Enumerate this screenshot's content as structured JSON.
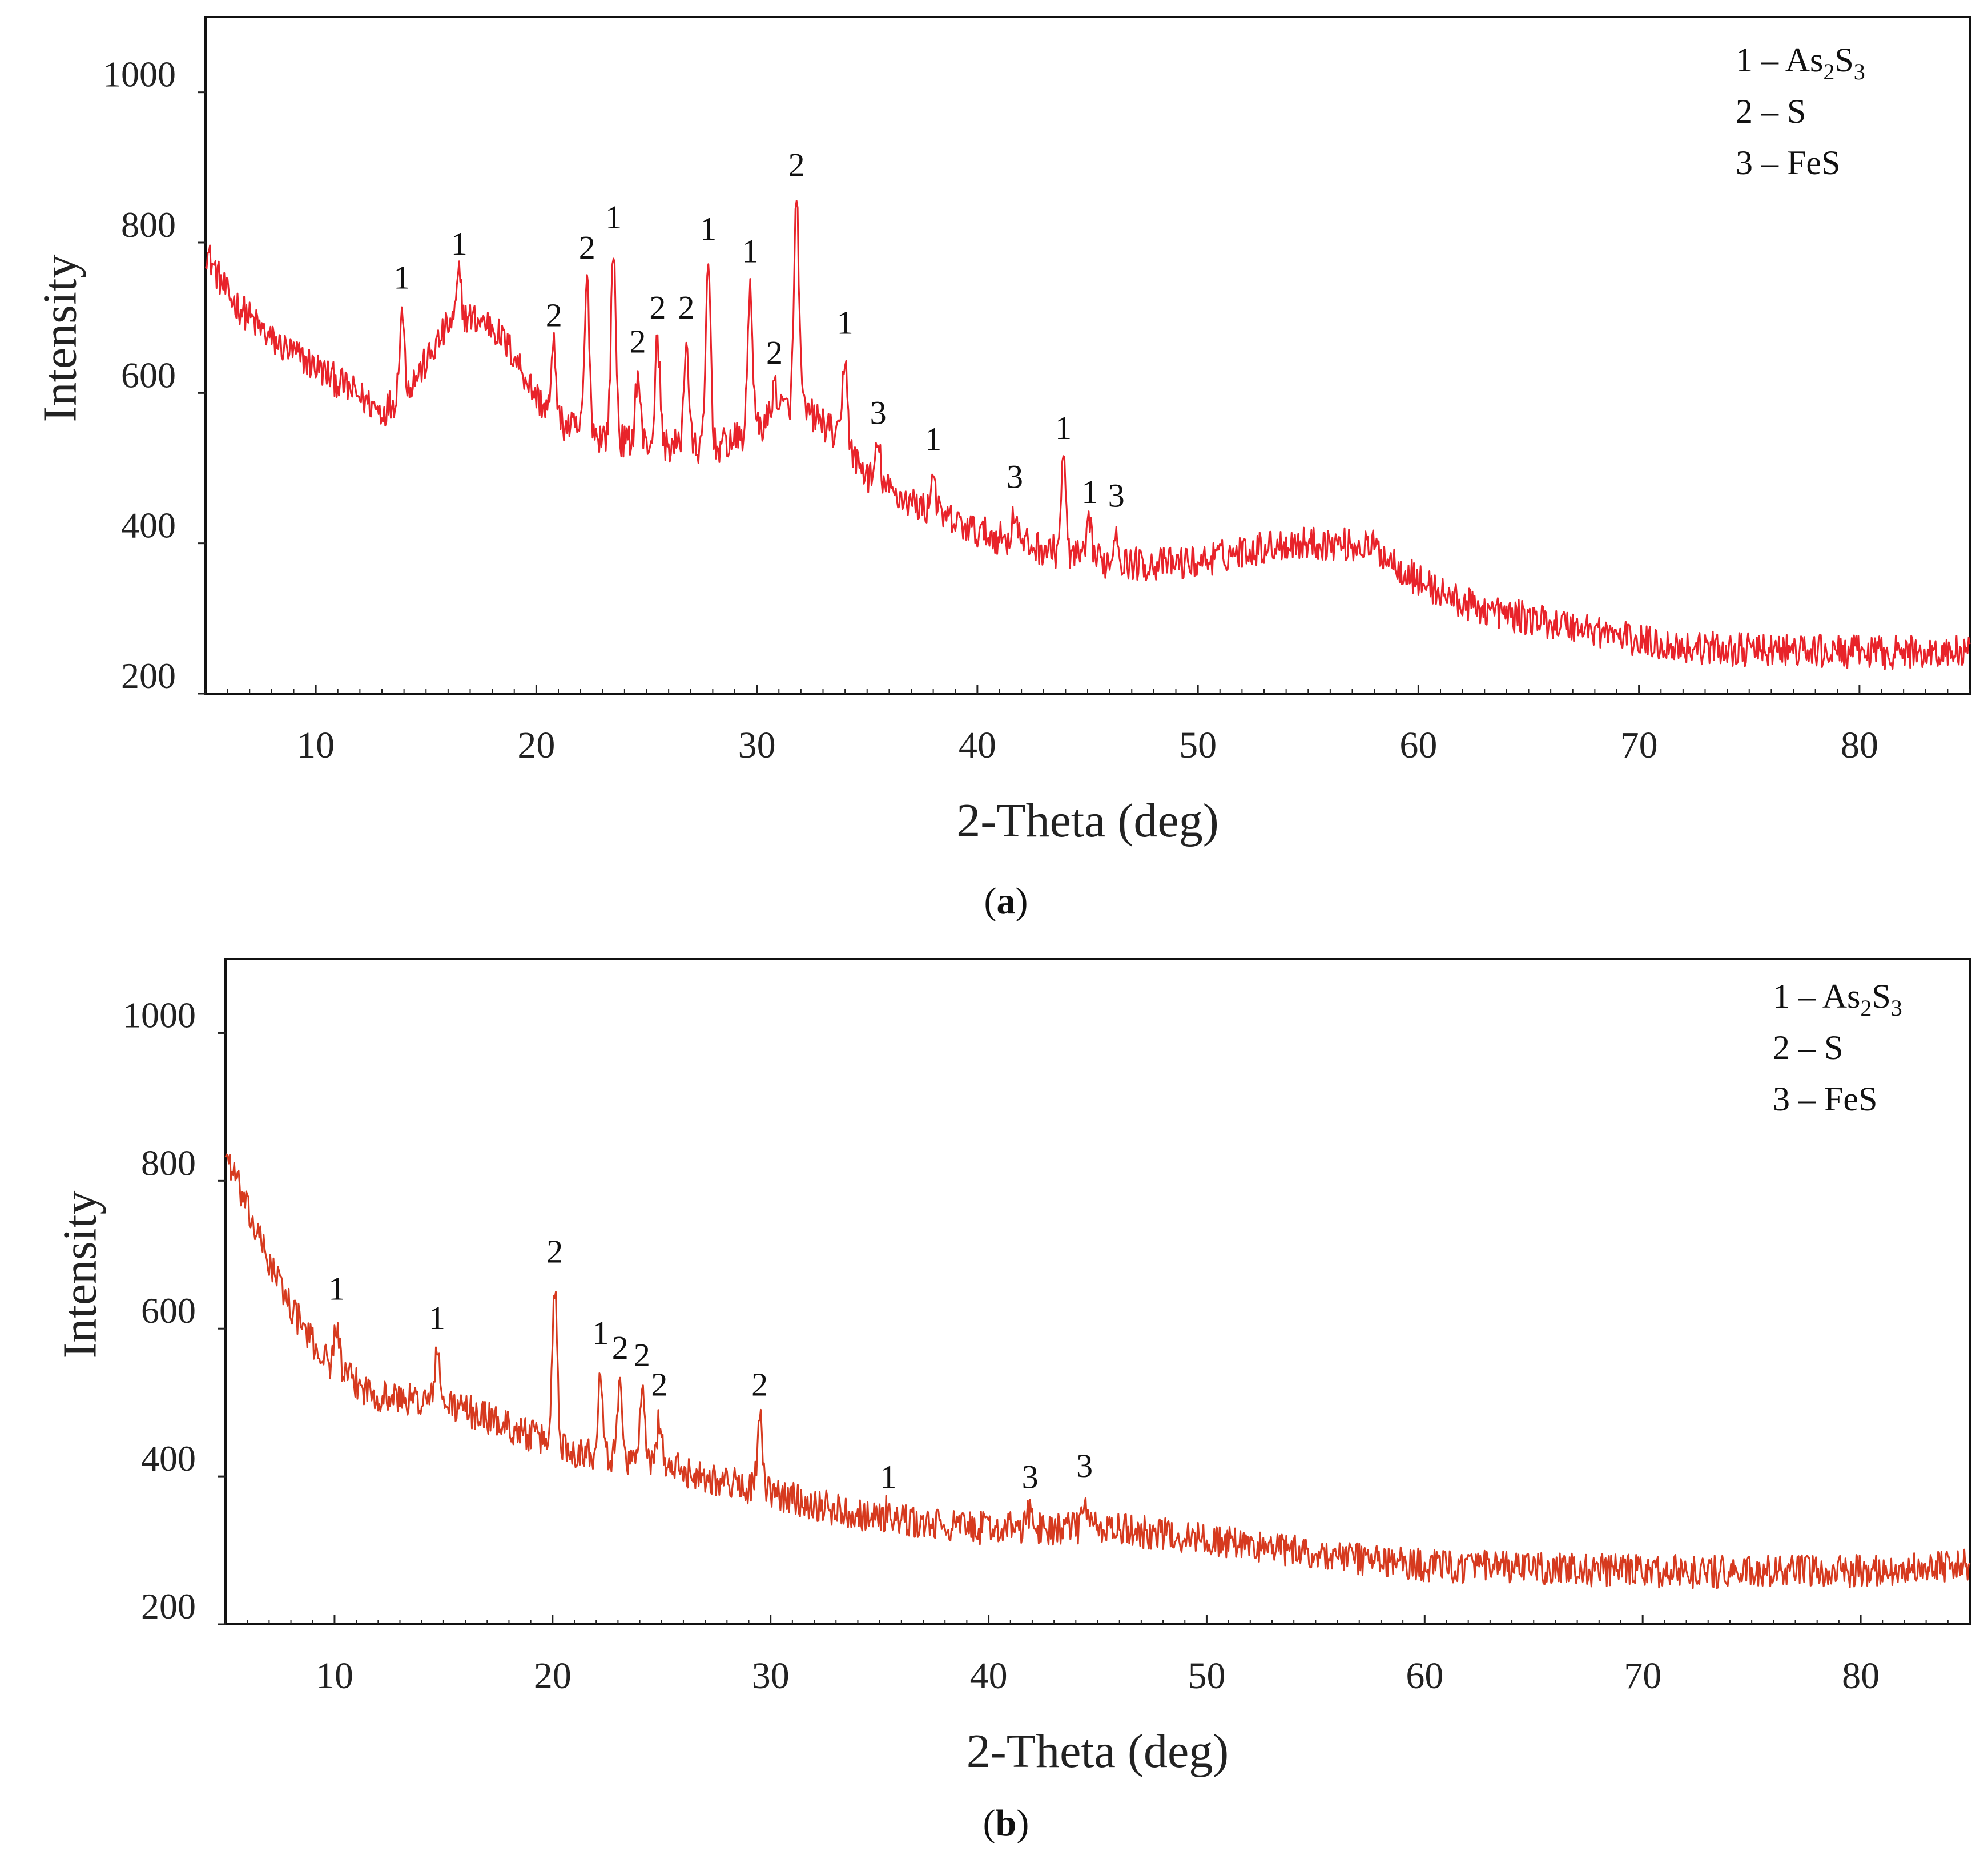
{
  "chart_data": [
    {
      "panel_label": "a",
      "type": "line",
      "xlabel": "2-Theta (deg)",
      "ylabel": "Intensity",
      "xlim": [
        5,
        85
      ],
      "ylim": [
        200,
        1100
      ],
      "xticks": [
        10,
        20,
        30,
        40,
        50,
        60,
        70,
        80
      ],
      "yticks": [
        200,
        400,
        600,
        800,
        1000
      ],
      "line_color": "#e8232a",
      "legend_position": "top-right",
      "legend": [
        {
          "key": "1",
          "dash": "–",
          "formula": "As",
          "sub1": "2",
          "mid": "S",
          "sub2": "3"
        },
        {
          "key": "2",
          "dash": "–",
          "formula": "S",
          "sub1": "",
          "mid": "",
          "sub2": ""
        },
        {
          "key": "3",
          "dash": "–",
          "formula": "FeS",
          "sub1": "",
          "mid": "",
          "sub2": ""
        }
      ],
      "baseline": [
        [
          5,
          790
        ],
        [
          6,
          730
        ],
        [
          8,
          670
        ],
        [
          10,
          635
        ],
        [
          12,
          595
        ],
        [
          13,
          575
        ],
        [
          14,
          600
        ],
        [
          15,
          640
        ],
        [
          16,
          690
        ],
        [
          17,
          700
        ],
        [
          18,
          690
        ],
        [
          19,
          650
        ],
        [
          20,
          595
        ],
        [
          21,
          560
        ],
        [
          22,
          550
        ],
        [
          24,
          535
        ],
        [
          26,
          530
        ],
        [
          28,
          525
        ],
        [
          30,
          550
        ],
        [
          31,
          580
        ],
        [
          32,
          580
        ],
        [
          33,
          560
        ],
        [
          34,
          530
        ],
        [
          35,
          490
        ],
        [
          36,
          470
        ],
        [
          38,
          440
        ],
        [
          40,
          415
        ],
        [
          42,
          400
        ],
        [
          44,
          385
        ],
        [
          46,
          375
        ],
        [
          48,
          372
        ],
        [
          50,
          375
        ],
        [
          52,
          390
        ],
        [
          54,
          400
        ],
        [
          56,
          400
        ],
        [
          58,
          395
        ],
        [
          60,
          350
        ],
        [
          62,
          320
        ],
        [
          64,
          305
        ],
        [
          66,
          295
        ],
        [
          68,
          285
        ],
        [
          70,
          270
        ],
        [
          72,
          262
        ],
        [
          75,
          258
        ],
        [
          80,
          255
        ],
        [
          85,
          255
        ]
      ],
      "noise": 14,
      "peaks": [
        {
          "x": 13.9,
          "y": 710,
          "label": "1"
        },
        {
          "x": 16.5,
          "y": 755,
          "label": "1"
        },
        {
          "x": 20.8,
          "y": 660,
          "label": "2"
        },
        {
          "x": 22.3,
          "y": 750,
          "label": "2"
        },
        {
          "x": 23.5,
          "y": 790,
          "label": "1"
        },
        {
          "x": 24.6,
          "y": 625,
          "label": "2"
        },
        {
          "x": 25.5,
          "y": 670,
          "label": "2"
        },
        {
          "x": 26.8,
          "y": 670,
          "label": "2"
        },
        {
          "x": 27.8,
          "y": 775,
          "label": "1"
        },
        {
          "x": 29.7,
          "y": 745,
          "label": "1"
        },
        {
          "x": 30.8,
          "y": 610,
          "label": "2"
        },
        {
          "x": 31.8,
          "y": 860,
          "label": "2"
        },
        {
          "x": 34.0,
          "y": 650,
          "label": "1"
        },
        {
          "x": 35.5,
          "y": 530,
          "label": "3"
        },
        {
          "x": 38.0,
          "y": 495,
          "label": "1"
        },
        {
          "x": 41.7,
          "y": 445,
          "label": "3"
        },
        {
          "x": 43.9,
          "y": 510,
          "label": "1"
        },
        {
          "x": 45.1,
          "y": 425,
          "label": "1"
        },
        {
          "x": 46.3,
          "y": 420,
          "label": "3"
        }
      ]
    },
    {
      "panel_label": "b",
      "type": "line",
      "xlabel": "2-Theta (deg)",
      "ylabel": "Intensity",
      "xlim": [
        5,
        85
      ],
      "ylim": [
        200,
        1100
      ],
      "xticks": [
        10,
        20,
        30,
        40,
        50,
        60,
        70,
        80
      ],
      "yticks": [
        200,
        400,
        600,
        800,
        1000
      ],
      "line_color": "#d63a1f",
      "legend_position": "top-right",
      "legend": [
        {
          "key": "1",
          "dash": "–",
          "formula": "As",
          "sub1": "2",
          "mid": "S",
          "sub2": "3"
        },
        {
          "key": "2",
          "dash": "–",
          "formula": "S",
          "sub1": "",
          "mid": "",
          "sub2": ""
        },
        {
          "key": "3",
          "dash": "–",
          "formula": "FeS",
          "sub1": "",
          "mid": "",
          "sub2": ""
        }
      ],
      "baseline": [
        [
          5,
          840
        ],
        [
          6,
          760
        ],
        [
          7,
          690
        ],
        [
          8,
          630
        ],
        [
          9,
          580
        ],
        [
          10,
          545
        ],
        [
          11,
          525
        ],
        [
          12,
          510
        ],
        [
          13,
          505
        ],
        [
          15,
          500
        ],
        [
          17,
          480
        ],
        [
          19,
          455
        ],
        [
          21,
          435
        ],
        [
          23,
          425
        ],
        [
          25,
          415
        ],
        [
          27,
          400
        ],
        [
          29,
          385
        ],
        [
          31,
          370
        ],
        [
          33,
          355
        ],
        [
          35,
          345
        ],
        [
          37,
          335
        ],
        [
          40,
          330
        ],
        [
          43,
          330
        ],
        [
          45,
          330
        ],
        [
          47,
          325
        ],
        [
          50,
          315
        ],
        [
          55,
          295
        ],
        [
          60,
          280
        ],
        [
          65,
          275
        ],
        [
          70,
          272
        ],
        [
          75,
          270
        ],
        [
          80,
          272
        ],
        [
          85,
          280
        ]
      ],
      "noise": 14,
      "peaks": [
        {
          "x": 10.1,
          "y": 610,
          "label": "1"
        },
        {
          "x": 14.7,
          "y": 570,
          "label": "1"
        },
        {
          "x": 20.1,
          "y": 660,
          "label": "2"
        },
        {
          "x": 22.2,
          "y": 550,
          "label": "1"
        },
        {
          "x": 23.1,
          "y": 530,
          "label": "2"
        },
        {
          "x": 24.1,
          "y": 520,
          "label": "2"
        },
        {
          "x": 24.9,
          "y": 480,
          "label": "2"
        },
        {
          "x": 29.5,
          "y": 480,
          "label": "2"
        },
        {
          "x": 35.4,
          "y": 355,
          "label": "1"
        },
        {
          "x": 41.9,
          "y": 355,
          "label": "3"
        },
        {
          "x": 44.4,
          "y": 370,
          "label": "3"
        }
      ]
    }
  ]
}
